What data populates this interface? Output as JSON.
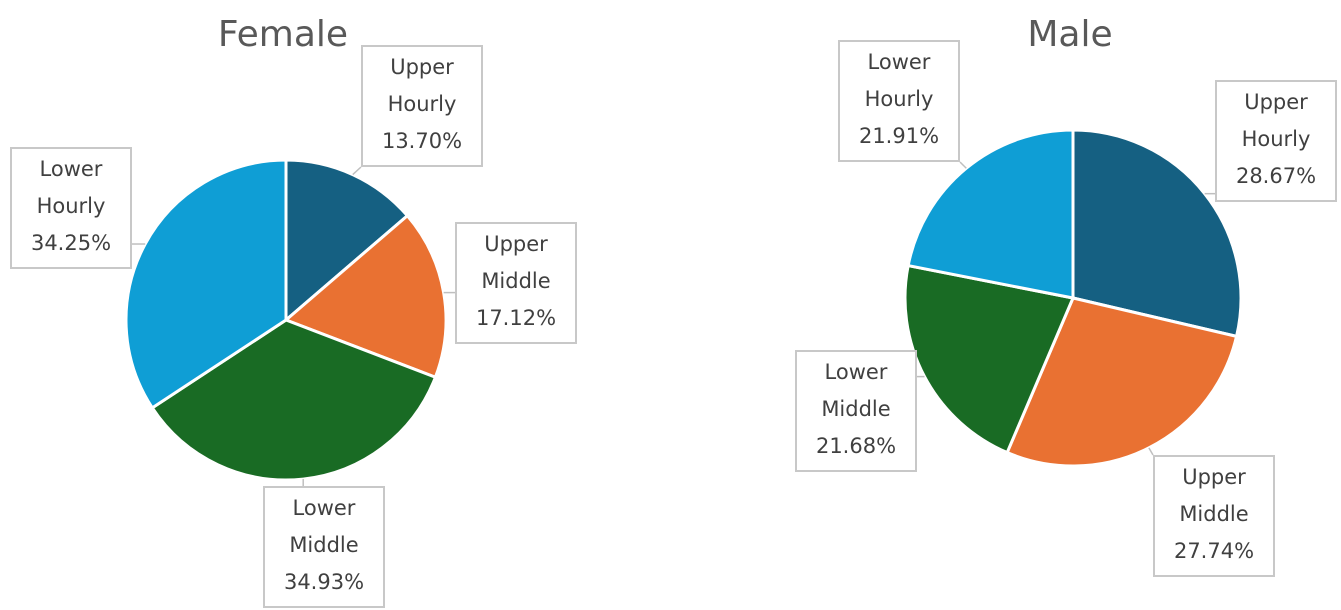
{
  "chart_data": [
    {
      "type": "pie",
      "title": "Female",
      "categories": [
        "Upper Hourly",
        "Upper Middle",
        "Lower Middle",
        "Lower Hourly"
      ],
      "values": [
        13.7,
        17.12,
        34.93,
        34.25
      ],
      "value_labels": [
        "13.70%",
        "17.12%",
        "34.93%",
        "34.25%"
      ],
      "colors": [
        "#156082",
        "#e97132",
        "#196b24",
        "#0f9ed5"
      ]
    },
    {
      "type": "pie",
      "title": "Male",
      "categories": [
        "Upper Hourly",
        "Upper Middle",
        "Lower Middle",
        "Lower Hourly"
      ],
      "values": [
        28.67,
        27.74,
        21.68,
        21.91
      ],
      "value_labels": [
        "28.67%",
        "27.74%",
        "21.68%",
        "21.91%"
      ],
      "colors": [
        "#156082",
        "#e97132",
        "#196b24",
        "#0f9ed5"
      ]
    }
  ]
}
